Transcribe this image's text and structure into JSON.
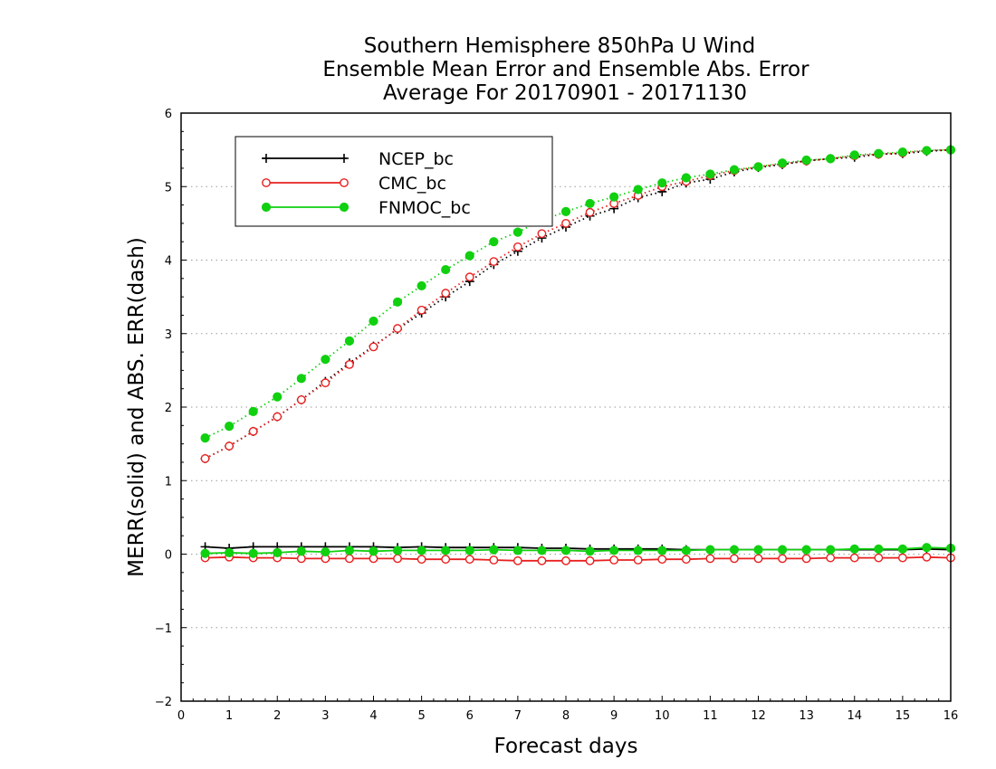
{
  "chart_data": {
    "type": "line",
    "title": [
      "Southern Hemisphere 850hPa U Wind",
      "Ensemble Mean Error and Ensemble Abs. Error",
      "Average For 20170901 - 20171130"
    ],
    "xlabel": "Forecast days",
    "ylabel": "MERR(solid) and ABS. ERR(dash)",
    "xlim": [
      0,
      16
    ],
    "ylim": [
      -2,
      6
    ],
    "xticks": [
      0,
      1,
      2,
      3,
      4,
      5,
      6,
      7,
      8,
      9,
      10,
      11,
      12,
      13,
      14,
      15,
      16
    ],
    "yticks": [
      -2,
      -1,
      0,
      1,
      2,
      3,
      4,
      5,
      6
    ],
    "ytick_labels": [
      "−2",
      "−1",
      "0",
      "1",
      "2",
      "3",
      "4",
      "5",
      "6"
    ],
    "grid": "horizontal dotted",
    "legend_position": "top-left",
    "x": [
      0.5,
      1,
      1.5,
      2,
      2.5,
      3,
      3.5,
      4,
      4.5,
      5,
      5.5,
      6,
      6.5,
      7,
      7.5,
      8,
      8.5,
      9,
      9.5,
      10,
      10.5,
      11,
      11.5,
      12,
      12.5,
      13,
      13.5,
      14,
      14.5,
      15,
      15.5,
      16
    ],
    "series": [
      {
        "name": "NCEP_bc",
        "color": "#000000",
        "marker": "plus",
        "merr": [
          0.1,
          0.08,
          0.1,
          0.1,
          0.1,
          0.1,
          0.1,
          0.1,
          0.09,
          0.1,
          0.09,
          0.09,
          0.09,
          0.09,
          0.08,
          0.08,
          0.07,
          0.07,
          0.07,
          0.07,
          0.06,
          0.06,
          0.06,
          0.06,
          0.06,
          0.06,
          0.06,
          0.06,
          0.06,
          0.06,
          0.07,
          0.06
        ],
        "abs_err": [
          1.3,
          1.47,
          1.67,
          1.87,
          2.1,
          2.35,
          2.6,
          2.83,
          3.06,
          3.28,
          3.5,
          3.71,
          3.94,
          4.12,
          4.3,
          4.45,
          4.6,
          4.7,
          4.85,
          4.93,
          5.05,
          5.1,
          5.2,
          5.26,
          5.3,
          5.35,
          5.38,
          5.4,
          5.44,
          5.45,
          5.48,
          5.5
        ]
      },
      {
        "name": "CMC_bc",
        "color": "#e82020",
        "marker": "open-circle",
        "merr": [
          -0.05,
          -0.04,
          -0.05,
          -0.05,
          -0.06,
          -0.06,
          -0.06,
          -0.06,
          -0.06,
          -0.07,
          -0.07,
          -0.07,
          -0.08,
          -0.09,
          -0.09,
          -0.09,
          -0.09,
          -0.08,
          -0.08,
          -0.07,
          -0.07,
          -0.06,
          -0.06,
          -0.06,
          -0.06,
          -0.06,
          -0.05,
          -0.05,
          -0.05,
          -0.05,
          -0.04,
          -0.05
        ],
        "abs_err": [
          1.3,
          1.47,
          1.67,
          1.87,
          2.1,
          2.33,
          2.58,
          2.82,
          3.07,
          3.32,
          3.55,
          3.77,
          3.98,
          4.18,
          4.36,
          4.5,
          4.65,
          4.77,
          4.88,
          5.0,
          5.07,
          5.15,
          5.22,
          5.27,
          5.31,
          5.35,
          5.38,
          5.42,
          5.44,
          5.46,
          5.49,
          5.5
        ]
      },
      {
        "name": "FNMOC_bc",
        "color": "#10d010",
        "marker": "filled-circle",
        "merr": [
          0.01,
          0.02,
          0.01,
          0.02,
          0.04,
          0.03,
          0.05,
          0.04,
          0.05,
          0.05,
          0.05,
          0.05,
          0.06,
          0.05,
          0.05,
          0.05,
          0.04,
          0.05,
          0.05,
          0.05,
          0.05,
          0.06,
          0.06,
          0.06,
          0.06,
          0.06,
          0.06,
          0.07,
          0.07,
          0.07,
          0.09,
          0.08
        ],
        "abs_err": [
          1.58,
          1.74,
          1.94,
          2.14,
          2.39,
          2.65,
          2.9,
          3.17,
          3.43,
          3.65,
          3.87,
          4.06,
          4.25,
          4.38,
          4.54,
          4.66,
          4.77,
          4.86,
          4.96,
          5.05,
          5.12,
          5.17,
          5.23,
          5.27,
          5.32,
          5.36,
          5.38,
          5.43,
          5.45,
          5.47,
          5.49,
          5.5
        ]
      }
    ]
  }
}
